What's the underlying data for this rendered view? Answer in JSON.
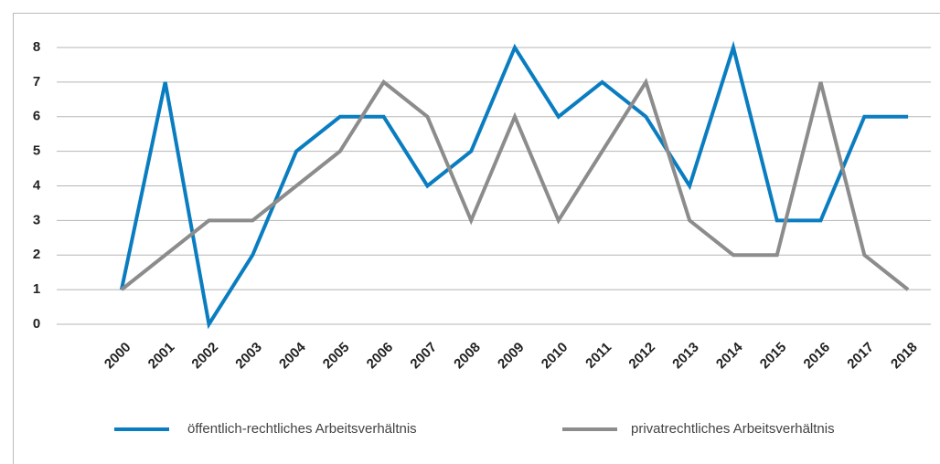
{
  "chart_data": {
    "type": "line",
    "categories": [
      "2000",
      "2001",
      "2002",
      "2003",
      "2004",
      "2005",
      "2006",
      "2007",
      "2008",
      "2009",
      "2010",
      "2011",
      "2012",
      "2013",
      "2014",
      "2015",
      "2016",
      "2017",
      "2018"
    ],
    "series": [
      {
        "name": "öffentlich-rechtliches Arbeitsverhältnis",
        "color": "#0a7dc1",
        "values": [
          1,
          7,
          0,
          2,
          5,
          6,
          6,
          4,
          5,
          8,
          6,
          7,
          6,
          4,
          8,
          3,
          3,
          6,
          6
        ]
      },
      {
        "name": "privatrechtliches Arbeitsverhältnis",
        "color": "#8c8c8c",
        "values": [
          1,
          2,
          3,
          3,
          4,
          5,
          7,
          6,
          3,
          6,
          3,
          5,
          7,
          3,
          2,
          2,
          7,
          2,
          1
        ]
      }
    ],
    "ylim": [
      0,
      8
    ],
    "yticks": [
      0,
      1,
      2,
      3,
      4,
      5,
      6,
      7,
      8
    ],
    "grid": true,
    "legend": "bottom"
  }
}
